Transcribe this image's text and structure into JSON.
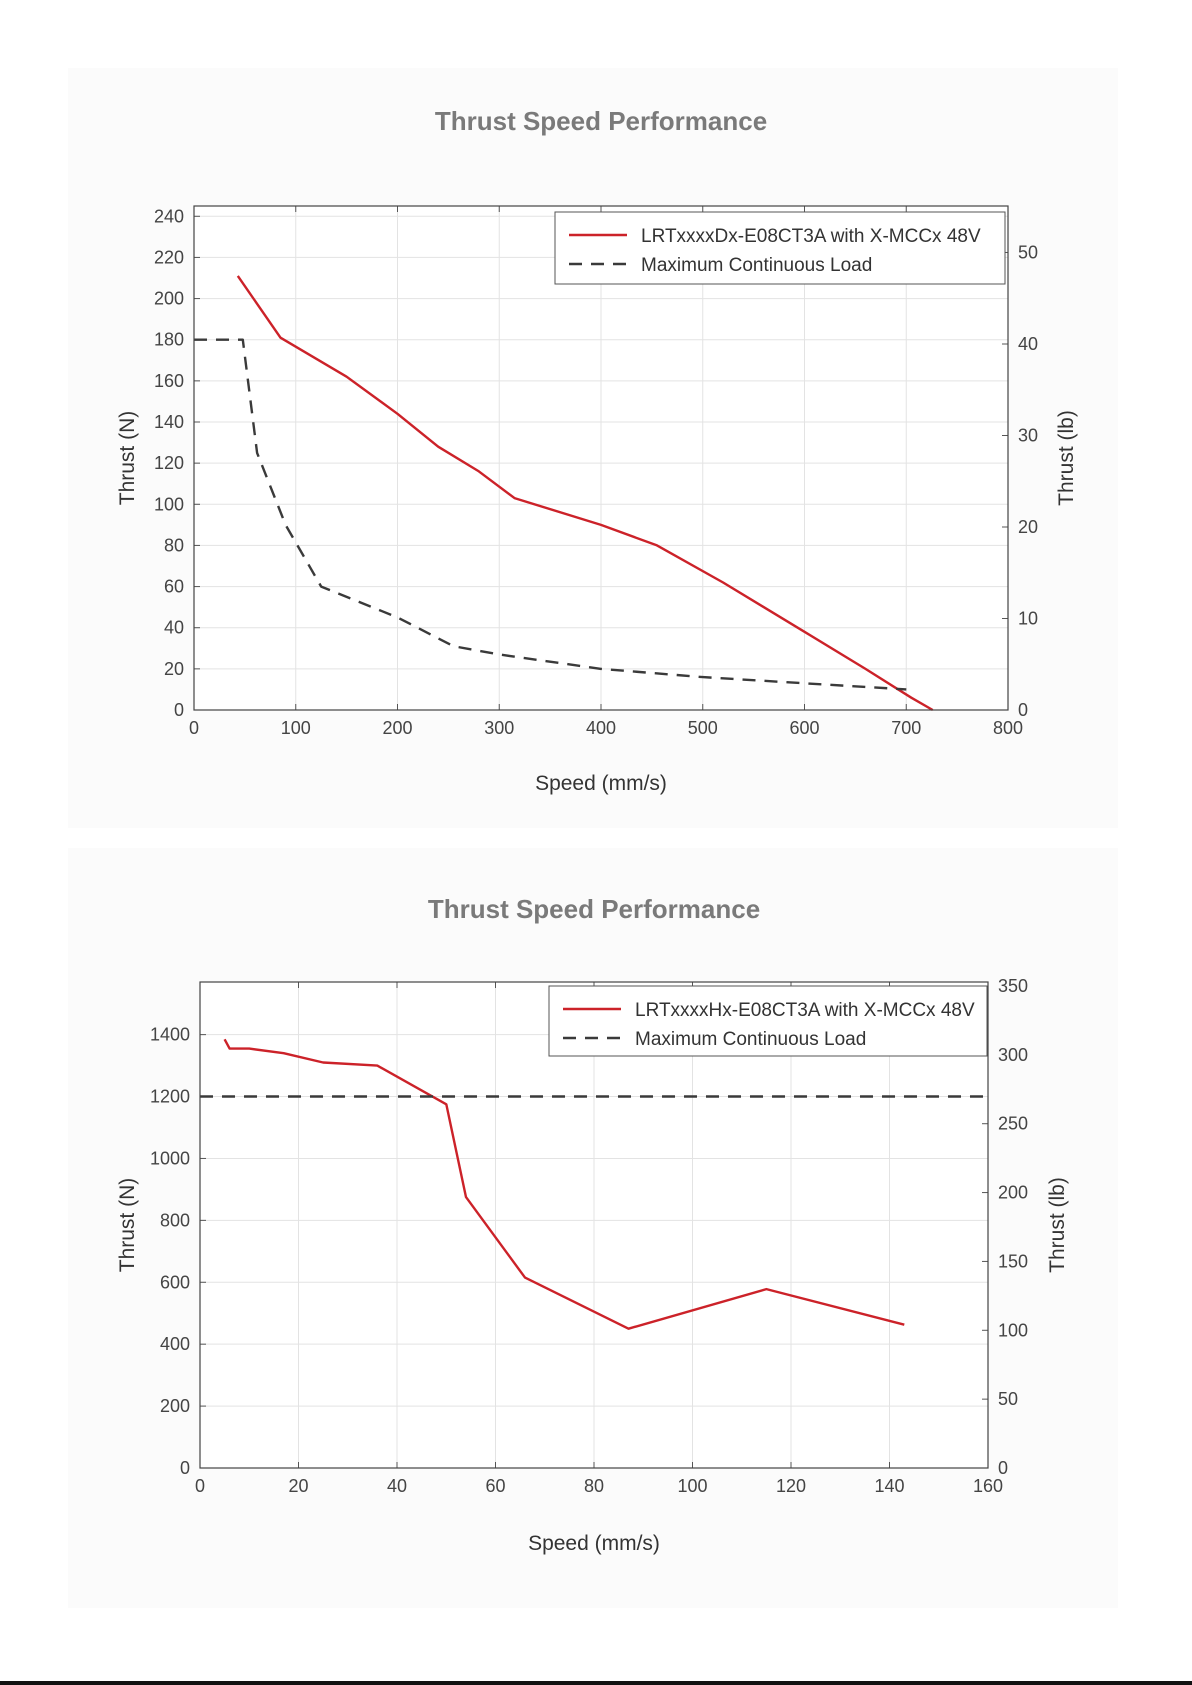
{
  "chart_data": [
    {
      "type": "line",
      "title": "Thrust Speed Performance",
      "xlabel": "Speed (mm/s)",
      "ylabel": "Thrust (N)",
      "y2label": "Thrust (lb)",
      "xlim": [
        0,
        800
      ],
      "ylim": [
        0,
        245
      ],
      "y2lim": [
        0,
        55.08
      ],
      "xticks": [
        0,
        100,
        200,
        300,
        400,
        500,
        600,
        700,
        800
      ],
      "yticks": [
        0,
        20,
        40,
        60,
        80,
        100,
        120,
        140,
        160,
        180,
        200,
        220,
        240
      ],
      "y2ticks": [
        0,
        10,
        20,
        30,
        40,
        50
      ],
      "grid": true,
      "legend_position": "top-right",
      "series": [
        {
          "name": "LRTxxxxDx-E08CT3A with X-MCCx 48V",
          "style": "solid",
          "color": "#cc2229",
          "x": [
            43,
            50,
            85,
            150,
            200,
            240,
            280,
            315,
            400,
            455,
            520,
            600,
            660,
            705,
            726
          ],
          "y": [
            211,
            206,
            181,
            162,
            144,
            128,
            116,
            103,
            90,
            80,
            62,
            38,
            20,
            6,
            0
          ]
        },
        {
          "name": "Maximum Continuous Load",
          "style": "dashed",
          "color": "#3a3a3a",
          "x": [
            0,
            48,
            62,
            90,
            125,
            200,
            255,
            300,
            400,
            500,
            600,
            700
          ],
          "y": [
            180,
            180,
            125,
            90,
            60,
            45,
            31,
            27,
            20,
            16,
            13,
            10
          ]
        }
      ]
    },
    {
      "type": "line",
      "title": "Thrust Speed Performance",
      "xlabel": "Speed (mm/s)",
      "ylabel": "Thrust (N)",
      "y2label": "Thrust (lb)",
      "xlim": [
        0,
        160
      ],
      "ylim": [
        0,
        1570
      ],
      "y2lim": [
        0,
        352.9
      ],
      "xticks": [
        0,
        20,
        40,
        60,
        80,
        100,
        120,
        140,
        160
      ],
      "yticks": [
        0,
        200,
        400,
        600,
        800,
        1000,
        1200,
        1400
      ],
      "y2ticks": [
        0,
        50,
        100,
        150,
        200,
        250,
        300,
        350
      ],
      "grid": true,
      "legend_position": "top-right",
      "series": [
        {
          "name": "LRTxxxxHx-E08CT3A with X-MCCx 48V",
          "style": "solid",
          "color": "#cc2229",
          "x": [
            5,
            6,
            10,
            17,
            25,
            36,
            50,
            54,
            66,
            87,
            115,
            143
          ],
          "y": [
            1385,
            1355,
            1355,
            1340,
            1310,
            1300,
            1175,
            875,
            615,
            450,
            578,
            463
          ]
        },
        {
          "name": "Maximum Continuous Load",
          "style": "dashed",
          "color": "#3a3a3a",
          "x": [
            0,
            160
          ],
          "y": [
            1200,
            1200
          ]
        }
      ]
    }
  ]
}
